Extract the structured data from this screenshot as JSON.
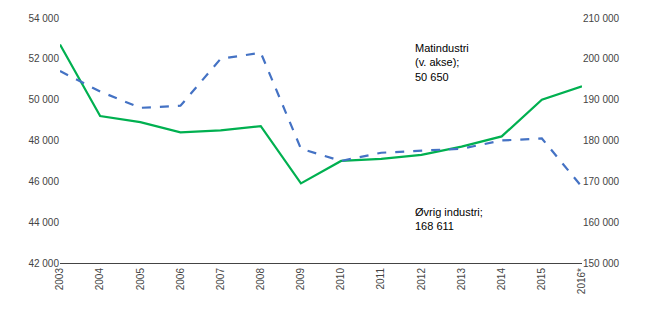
{
  "chart_data": {
    "type": "line",
    "categories": [
      "2003",
      "2004",
      "2005",
      "2006",
      "2007",
      "2008",
      "2009",
      "2010",
      "2011",
      "2012",
      "2013",
      "2014",
      "2015",
      "2016*"
    ],
    "series": [
      {
        "color": "#00b050",
        "line_style": "solid",
        "axis": "y",
        "values": [
          52700,
          49200,
          48900,
          48400,
          48500,
          48700,
          45900,
          47000,
          47100,
          47300,
          47700,
          48200,
          50000,
          50650
        ]
      },
      {
        "color": "#4472c4",
        "line_style": "dashed",
        "axis": "y2",
        "values": [
          197000,
          192000,
          188000,
          188500,
          200000,
          201500,
          178000,
          175000,
          177000,
          177500,
          178000,
          180000,
          180500,
          168611
        ]
      }
    ],
    "ylim": [
      42000,
      54000
    ],
    "yticks": [
      {
        "value": 42000,
        "label": "42 000"
      },
      {
        "value": 44000,
        "label": "44 000"
      },
      {
        "value": 46000,
        "label": "46 000"
      },
      {
        "value": 48000,
        "label": "48 000"
      },
      {
        "value": 50000,
        "label": "50 000"
      },
      {
        "value": 52000,
        "label": "52 000"
      },
      {
        "value": 54000,
        "label": "54 000"
      }
    ],
    "y2lim": [
      150000,
      210000
    ],
    "y2ticks": [
      {
        "value": 150000,
        "label": "150 000"
      },
      {
        "value": 160000,
        "label": "160 000"
      },
      {
        "value": 170000,
        "label": "170 000"
      },
      {
        "value": 180000,
        "label": "180 000"
      },
      {
        "value": 190000,
        "label": "190 000"
      },
      {
        "value": 200000,
        "label": "200 000"
      },
      {
        "value": 210000,
        "label": "210 000"
      }
    ],
    "annotations": [
      "Matindustri\n(v. akse);\n50 650",
      "Øvrig industri;\n168 611"
    ],
    "grid": false,
    "legend": false
  }
}
